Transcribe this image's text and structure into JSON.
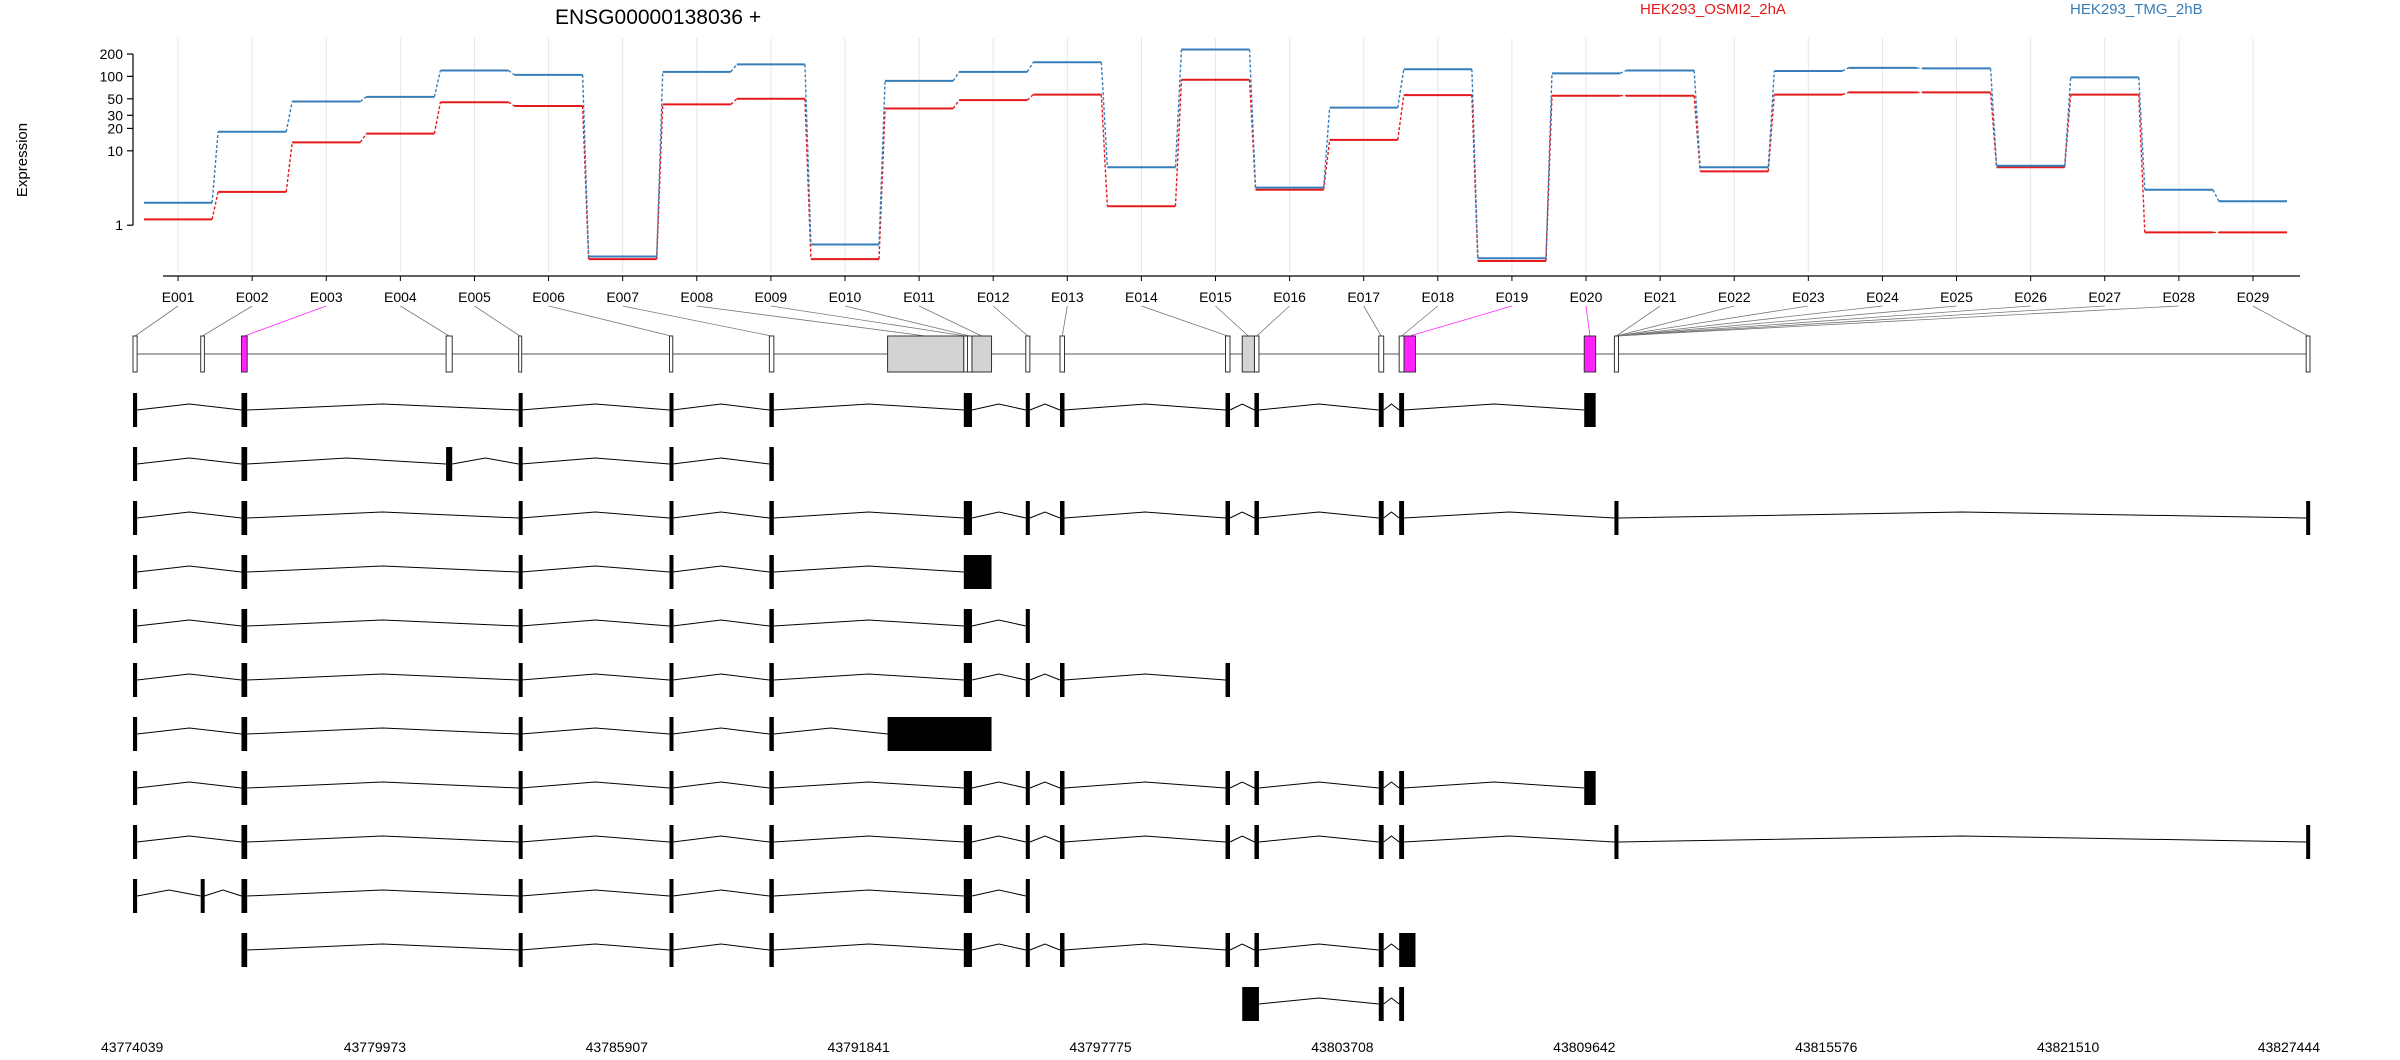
{
  "colors": {
    "series1": "#e41a1c",
    "series2": "#377eb8",
    "highlight": "#ff22ff",
    "exon_gray": "#d3d3d3",
    "grid": "#e6e6e6"
  },
  "chart_data": {
    "type": "line",
    "title": "ENSG00000138036 +",
    "ylabel": "Expression",
    "y_scale": "log",
    "y_ticks": [
      1,
      10,
      20,
      30,
      50,
      100,
      200
    ],
    "grid": "vertical",
    "legend": "top-right",
    "categories": [
      "E001",
      "E002",
      "E003",
      "E004",
      "E005",
      "E006",
      "E007",
      "E008",
      "E009",
      "E010",
      "E011",
      "E012",
      "E013",
      "E014",
      "E015",
      "E016",
      "E017",
      "E018",
      "E019",
      "E020",
      "E021",
      "E022",
      "E023",
      "E024",
      "E025",
      "E026",
      "E027",
      "E028",
      "E029"
    ],
    "series": [
      {
        "name": "HEK293_OSMI2_2hA",
        "color": "#e41a1c",
        "values": [
          1.2,
          2.8,
          13,
          17,
          45,
          40,
          0.35,
          42,
          50,
          0.35,
          37,
          48,
          57,
          1.8,
          90,
          3.0,
          14,
          56,
          0.33,
          55,
          55,
          5.3,
          57,
          61,
          61,
          6.0,
          57,
          0.8,
          0.8
        ]
      },
      {
        "name": "HEK293_TMG_2hB",
        "color": "#377eb8",
        "values": [
          2.0,
          18,
          46,
          53,
          120,
          105,
          0.38,
          115,
          145,
          0.55,
          87,
          115,
          155,
          6.0,
          230,
          3.2,
          38,
          125,
          0.36,
          110,
          120,
          6.0,
          118,
          130,
          128,
          6.3,
          97,
          3.0,
          2.1
        ]
      }
    ],
    "coordinate_axis": {
      "labels": [
        "43774039",
        "43779973",
        "43785907",
        "43791841",
        "43797775",
        "43803708",
        "43809642",
        "43815576",
        "43821510",
        "43827444"
      ]
    },
    "exons": [
      {
        "id": "E001",
        "start": 43774039,
        "end": 43774140,
        "fill": "#ffffff"
      },
      {
        "id": "E002",
        "start": 43775700,
        "end": 43775790,
        "fill": "#ffffff"
      },
      {
        "id": "E003",
        "start": 43776700,
        "end": 43776840,
        "fill": "#ff22ff"
      },
      {
        "id": "E004",
        "start": 43781720,
        "end": 43781870,
        "fill": "#ffffff"
      },
      {
        "id": "E005",
        "start": 43783500,
        "end": 43783560,
        "fill": "#ffffff"
      },
      {
        "id": "E006",
        "start": 43787200,
        "end": 43787280,
        "fill": "#ffffff"
      },
      {
        "id": "E007",
        "start": 43789650,
        "end": 43789760,
        "fill": "#ffffff"
      },
      {
        "id": "E008",
        "start": 43792550,
        "end": 43794420,
        "fill": "#d3d3d3"
      },
      {
        "id": "E009",
        "start": 43794420,
        "end": 43794510,
        "fill": "#ffffff"
      },
      {
        "id": "E010",
        "start": 43794510,
        "end": 43794620,
        "fill": "#ffffff"
      },
      {
        "id": "E011",
        "start": 43794620,
        "end": 43795100,
        "fill": "#d3d3d3"
      },
      {
        "id": "E012",
        "start": 43795940,
        "end": 43796040,
        "fill": "#ffffff"
      },
      {
        "id": "E013",
        "start": 43796780,
        "end": 43796890,
        "fill": "#ffffff"
      },
      {
        "id": "E014",
        "start": 43800840,
        "end": 43800950,
        "fill": "#ffffff"
      },
      {
        "id": "E015",
        "start": 43801250,
        "end": 43801550,
        "fill": "#d3d3d3"
      },
      {
        "id": "E016",
        "start": 43801550,
        "end": 43801660,
        "fill": "#ffffff"
      },
      {
        "id": "E017",
        "start": 43804600,
        "end": 43804720,
        "fill": "#ffffff"
      },
      {
        "id": "E018",
        "start": 43805100,
        "end": 43805220,
        "fill": "#ffffff"
      },
      {
        "id": "E019",
        "start": 43805220,
        "end": 43805500,
        "fill": "#ff22ff"
      },
      {
        "id": "E020",
        "start": 43809640,
        "end": 43809920,
        "fill": "#ff22ff"
      },
      {
        "id": "E021",
        "start": 43810380,
        "end": 43810480,
        "fill": "#ffffff"
      },
      {
        "id": "E022",
        "start": 43827350,
        "end": 43827444,
        "fill": "#ffffff"
      }
    ],
    "exon_label_to_segment": [
      0,
      1,
      2,
      3,
      4,
      5,
      6,
      7,
      8,
      9,
      10,
      11,
      12,
      13,
      14,
      15,
      16,
      17,
      18,
      19,
      20,
      20,
      20,
      20,
      20,
      20,
      20,
      20,
      21
    ],
    "transcripts": [
      [
        [
          43774039,
          43774140
        ],
        [
          43776700,
          43776840
        ],
        [
          43783500,
          43783560
        ],
        [
          43787200,
          43787280
        ],
        [
          43789650,
          43789760
        ],
        [
          43794420,
          43794620
        ],
        [
          43795940,
          43796040
        ],
        [
          43796780,
          43796890
        ],
        [
          43800840,
          43800950
        ],
        [
          43801550,
          43801660
        ],
        [
          43804600,
          43804720
        ],
        [
          43805100,
          43805220
        ],
        [
          43809640,
          43809920
        ]
      ],
      [
        [
          43774039,
          43774140
        ],
        [
          43776700,
          43776840
        ],
        [
          43781720,
          43781870
        ],
        [
          43783500,
          43783560
        ],
        [
          43787200,
          43787280
        ],
        [
          43789650,
          43789760
        ]
      ],
      [
        [
          43774039,
          43774140
        ],
        [
          43776700,
          43776840
        ],
        [
          43783500,
          43783560
        ],
        [
          43787200,
          43787280
        ],
        [
          43789650,
          43789760
        ],
        [
          43794420,
          43794620
        ],
        [
          43795940,
          43796040
        ],
        [
          43796780,
          43796890
        ],
        [
          43800840,
          43800950
        ],
        [
          43801550,
          43801660
        ],
        [
          43804600,
          43804720
        ],
        [
          43805100,
          43805220
        ],
        [
          43810380,
          43810480
        ],
        [
          43827350,
          43827444
        ]
      ],
      [
        [
          43774039,
          43774140
        ],
        [
          43776700,
          43776840
        ],
        [
          43783500,
          43783560
        ],
        [
          43787200,
          43787280
        ],
        [
          43789650,
          43789760
        ],
        [
          43794420,
          43795100
        ]
      ],
      [
        [
          43774039,
          43774140
        ],
        [
          43776700,
          43776840
        ],
        [
          43783500,
          43783560
        ],
        [
          43787200,
          43787280
        ],
        [
          43789650,
          43789760
        ],
        [
          43794420,
          43794620
        ],
        [
          43795940,
          43796040
        ]
      ],
      [
        [
          43774039,
          43774140
        ],
        [
          43776700,
          43776840
        ],
        [
          43783500,
          43783560
        ],
        [
          43787200,
          43787280
        ],
        [
          43789650,
          43789760
        ],
        [
          43794420,
          43794620
        ],
        [
          43795940,
          43796040
        ],
        [
          43796780,
          43796890
        ],
        [
          43800840,
          43800950
        ]
      ],
      [
        [
          43774039,
          43774140
        ],
        [
          43776700,
          43776840
        ],
        [
          43783500,
          43783560
        ],
        [
          43787200,
          43787280
        ],
        [
          43789650,
          43789760
        ],
        [
          43792550,
          43795100
        ]
      ],
      [
        [
          43774039,
          43774140
        ],
        [
          43776700,
          43776840
        ],
        [
          43783500,
          43783560
        ],
        [
          43787200,
          43787280
        ],
        [
          43789650,
          43789760
        ],
        [
          43794420,
          43794620
        ],
        [
          43795940,
          43796040
        ],
        [
          43796780,
          43796890
        ],
        [
          43800840,
          43800950
        ],
        [
          43801550,
          43801660
        ],
        [
          43804600,
          43804720
        ],
        [
          43805100,
          43805220
        ],
        [
          43809640,
          43809920
        ]
      ],
      [
        [
          43774039,
          43774140
        ],
        [
          43776700,
          43776840
        ],
        [
          43783500,
          43783560
        ],
        [
          43787200,
          43787280
        ],
        [
          43789650,
          43789760
        ],
        [
          43794420,
          43794620
        ],
        [
          43795940,
          43796040
        ],
        [
          43796780,
          43796890
        ],
        [
          43800840,
          43800950
        ],
        [
          43801550,
          43801660
        ],
        [
          43804600,
          43804720
        ],
        [
          43805100,
          43805220
        ],
        [
          43810380,
          43810480
        ],
        [
          43827350,
          43827444
        ]
      ],
      [
        [
          43774039,
          43774140
        ],
        [
          43775700,
          43775790
        ],
        [
          43776700,
          43776840
        ],
        [
          43783500,
          43783560
        ],
        [
          43787200,
          43787280
        ],
        [
          43789650,
          43789760
        ],
        [
          43794420,
          43794620
        ],
        [
          43795940,
          43796040
        ]
      ],
      [
        [
          43776700,
          43776840
        ],
        [
          43783500,
          43783560
        ],
        [
          43787200,
          43787280
        ],
        [
          43789650,
          43789760
        ],
        [
          43794420,
          43794620
        ],
        [
          43795940,
          43796040
        ],
        [
          43796780,
          43796890
        ],
        [
          43800840,
          43800950
        ],
        [
          43801550,
          43801660
        ],
        [
          43804600,
          43804720
        ],
        [
          43805100,
          43805500
        ]
      ],
      [
        [
          43801250,
          43801660
        ],
        [
          43804600,
          43804720
        ],
        [
          43805100,
          43805220
        ]
      ]
    ]
  }
}
